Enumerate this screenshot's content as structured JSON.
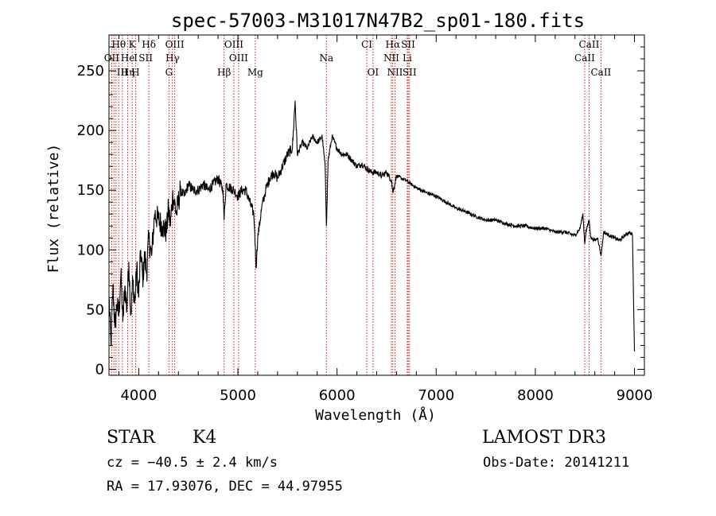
{
  "chart_data": {
    "type": "line",
    "title": "spec-57003-M31017N47B2_sp01-180.fits",
    "xlabel": "Wavelength (Å)",
    "ylabel": "Flux (relative)",
    "xlim": [
      3700,
      9100
    ],
    "ylim": [
      -5,
      280
    ],
    "xticks": [
      4000,
      5000,
      6000,
      7000,
      8000,
      9000
    ],
    "yticks": [
      0,
      50,
      100,
      150,
      200,
      250
    ],
    "series": [
      {
        "name": "flux",
        "x": [
          3700,
          3720,
          3740,
          3760,
          3780,
          3800,
          3820,
          3840,
          3860,
          3880,
          3900,
          3920,
          3940,
          3960,
          3980,
          4000,
          4020,
          4040,
          4060,
          4080,
          4100,
          4130,
          4160,
          4200,
          4240,
          4280,
          4300,
          4320,
          4340,
          4360,
          4380,
          4420,
          4460,
          4500,
          4550,
          4600,
          4650,
          4700,
          4750,
          4800,
          4850,
          4861,
          4880,
          4920,
          4960,
          5000,
          5040,
          5080,
          5120,
          5160,
          5170,
          5183,
          5200,
          5240,
          5280,
          5320,
          5360,
          5400,
          5450,
          5500,
          5550,
          5577,
          5600,
          5650,
          5700,
          5750,
          5800,
          5850,
          5880,
          5893,
          5910,
          5950,
          6000,
          6050,
          6100,
          6150,
          6200,
          6250,
          6300,
          6350,
          6400,
          6450,
          6500,
          6550,
          6563,
          6600,
          6650,
          6700,
          6750,
          6800,
          6900,
          7000,
          7100,
          7200,
          7300,
          7400,
          7500,
          7600,
          7700,
          7800,
          7900,
          8000,
          8100,
          8200,
          8300,
          8400,
          8450,
          8480,
          8498,
          8510,
          8542,
          8560,
          8600,
          8630,
          8662,
          8690,
          8750,
          8800,
          8850,
          8900,
          8950,
          8980,
          8990,
          9000
        ],
        "values": [
          60,
          20,
          70,
          35,
          55,
          45,
          80,
          40,
          70,
          50,
          90,
          45,
          75,
          55,
          85,
          60,
          100,
          75,
          95,
          80,
          110,
          95,
          130,
          125,
          120,
          115,
          135,
          120,
          145,
          140,
          130,
          150,
          145,
          155,
          150,
          150,
          155,
          150,
          155,
          160,
          150,
          125,
          155,
          152,
          150,
          145,
          150,
          150,
          140,
          130,
          115,
          85,
          110,
          135,
          150,
          160,
          165,
          160,
          170,
          180,
          185,
          225,
          180,
          190,
          185,
          195,
          190,
          195,
          170,
          120,
          175,
          195,
          185,
          180,
          180,
          175,
          170,
          172,
          168,
          165,
          165,
          162,
          165,
          158,
          148,
          162,
          160,
          158,
          155,
          152,
          148,
          145,
          140,
          135,
          132,
          128,
          125,
          125,
          122,
          120,
          120,
          118,
          118,
          115,
          115,
          112,
          118,
          130,
          105,
          115,
          125,
          110,
          108,
          110,
          95,
          115,
          112,
          110,
          108,
          112,
          115,
          112,
          60,
          15
        ]
      }
    ],
    "line_markers": [
      {
        "label": "Hθ",
        "x": 3798,
        "row": 0
      },
      {
        "label": "K",
        "x": 3934,
        "row": 0
      },
      {
        "label": "Hδ",
        "x": 4102,
        "row": 0
      },
      {
        "label": "OIII",
        "x": 4363,
        "row": 0
      },
      {
        "label": "OIII",
        "x": 4959,
        "row": 0
      },
      {
        "label": "CI",
        "x": 6300,
        "row": 0
      },
      {
        "label": "Hα",
        "x": 6563,
        "row": 0
      },
      {
        "label": "SII",
        "x": 6717,
        "row": 0
      },
      {
        "label": "CaII",
        "x": 8542,
        "row": 0
      },
      {
        "label": "OII",
        "x": 3727,
        "row": 1
      },
      {
        "label": "He",
        "x": 3889,
        "row": 1
      },
      {
        "label": "I",
        "x": 3970,
        "row": 1
      },
      {
        "label": "SII",
        "x": 4070,
        "row": 1
      },
      {
        "label": "Hγ",
        "x": 4340,
        "row": 1
      },
      {
        "label": "OIII",
        "x": 5007,
        "row": 1
      },
      {
        "label": "Na",
        "x": 5893,
        "row": 1
      },
      {
        "label": "NII",
        "x": 6548,
        "row": 1
      },
      {
        "label": "Li",
        "x": 6708,
        "row": 1
      },
      {
        "label": "CaII",
        "x": 8498,
        "row": 1
      },
      {
        "label": "III",
        "x": 3835,
        "row": 2
      },
      {
        "label": "Hη",
        "x": 3889,
        "row": 2
      },
      {
        "label": "H",
        "x": 3968,
        "row": 2
      },
      {
        "label": "G",
        "x": 4305,
        "row": 2
      },
      {
        "label": "Hβ",
        "x": 4861,
        "row": 2
      },
      {
        "label": "Mg",
        "x": 5175,
        "row": 2
      },
      {
        "label": "OI",
        "x": 6363,
        "row": 2
      },
      {
        "label": "NII",
        "x": 6584,
        "row": 2
      },
      {
        "label": "SII",
        "x": 6731,
        "row": 2
      },
      {
        "label": "CaII",
        "x": 8662,
        "row": 2
      }
    ],
    "marker_lines_x": [
      3727,
      3750,
      3771,
      3798,
      3835,
      3889,
      3934,
      3970,
      4102,
      4305,
      4340,
      4363,
      4861,
      4959,
      5007,
      5175,
      5893,
      6300,
      6363,
      6548,
      6563,
      6584,
      6708,
      6717,
      6731,
      8498,
      8542,
      8662
    ],
    "marker_color": "#cc0000"
  },
  "info": {
    "object_class": "STAR",
    "subclass": "K4",
    "survey": "LAMOST DR3",
    "redshift_line": "cz = −40.5 ± 2.4 km/s",
    "obs_date_line": "Obs-Date: 20141211",
    "coords_line": "RA =  17.93076, DEC =  44.97955"
  }
}
